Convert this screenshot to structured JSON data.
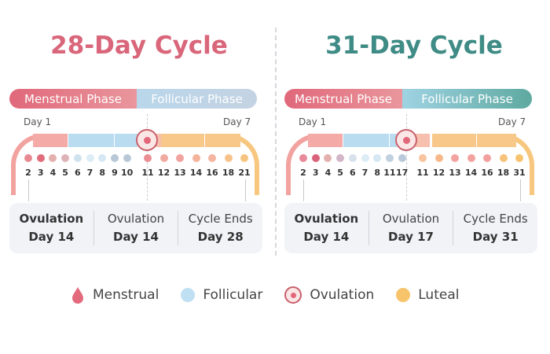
{
  "colors": {
    "menstrual": "#e36a7c",
    "follicular": "#bfe0f3",
    "ovulation": "#c9606c",
    "luteal": "#f7c46c",
    "title_left": "#d9667a",
    "title_right": "#3f8b86"
  },
  "panels": [
    {
      "title": "28-Day Cycle",
      "phase_menstrual": "Menstrual Phase",
      "phase_follicular": "Follicular Phase",
      "day_start": "Day 1",
      "day_end": "Day 7",
      "numbers": [
        "2",
        "3",
        "4",
        "5",
        "6",
        "7",
        "8",
        "9",
        "10",
        "11",
        "12",
        "13",
        "14",
        "16",
        "18",
        "21"
      ],
      "dots": [
        "#e88a92",
        "#e06c7c",
        "#e3b0ad",
        "#ddb3b8",
        "#cfe3ef",
        "#dcedf6",
        "#d6e8f3",
        "#b9c8d6",
        "#b9c8d6",
        "#ea8e93",
        "#f1aa9f",
        "#f2a3a0",
        "#f4b39a",
        "#f6b5a0",
        "#f7c28a",
        "#f7c47f"
      ],
      "info": [
        {
          "label": "Ovulation",
          "value": "Day 14"
        },
        {
          "label": "Ovulation",
          "value": "Day 14"
        },
        {
          "label": "Cycle Ends",
          "value": "Day 28"
        }
      ]
    },
    {
      "title": "31-Day Cycle",
      "phase_menstrual": "Menstrual Phase",
      "phase_follicular": "Follicular Phase",
      "day_start": "Day 1",
      "day_end": "Day 7",
      "numbers": [
        "2",
        "3",
        "4",
        "5",
        "6",
        "7",
        "8",
        "11",
        "17",
        "11",
        "12",
        "13",
        "14",
        "16",
        "18",
        "31"
      ],
      "dots": [
        "#e88a9a",
        "#d9637a",
        "#e3b0ad",
        "#d2b5c6",
        "#d8e2ec",
        "#dcedf6",
        "#d6e8f3",
        "#bfd0df",
        "#b9c8da",
        "#f8c49f",
        "#f7b98a",
        "#f2a3a0",
        "#f2a3a0",
        "#f1a09e",
        "#f7c27a",
        "#f7c36f"
      ],
      "info": [
        {
          "label": "Ovulation",
          "value": "Day 14"
        },
        {
          "label": "Ovulation",
          "value": "Day 17"
        },
        {
          "label": "Cycle Ends",
          "value": "Day 31"
        }
      ]
    }
  ],
  "legend": [
    {
      "label": "Menstrual",
      "icon": "drop-icon"
    },
    {
      "label": "Follicular",
      "icon": "circle-icon"
    },
    {
      "label": "Ovulation",
      "icon": "egg-icon"
    },
    {
      "label": "Luteal",
      "icon": "circle-icon"
    }
  ]
}
